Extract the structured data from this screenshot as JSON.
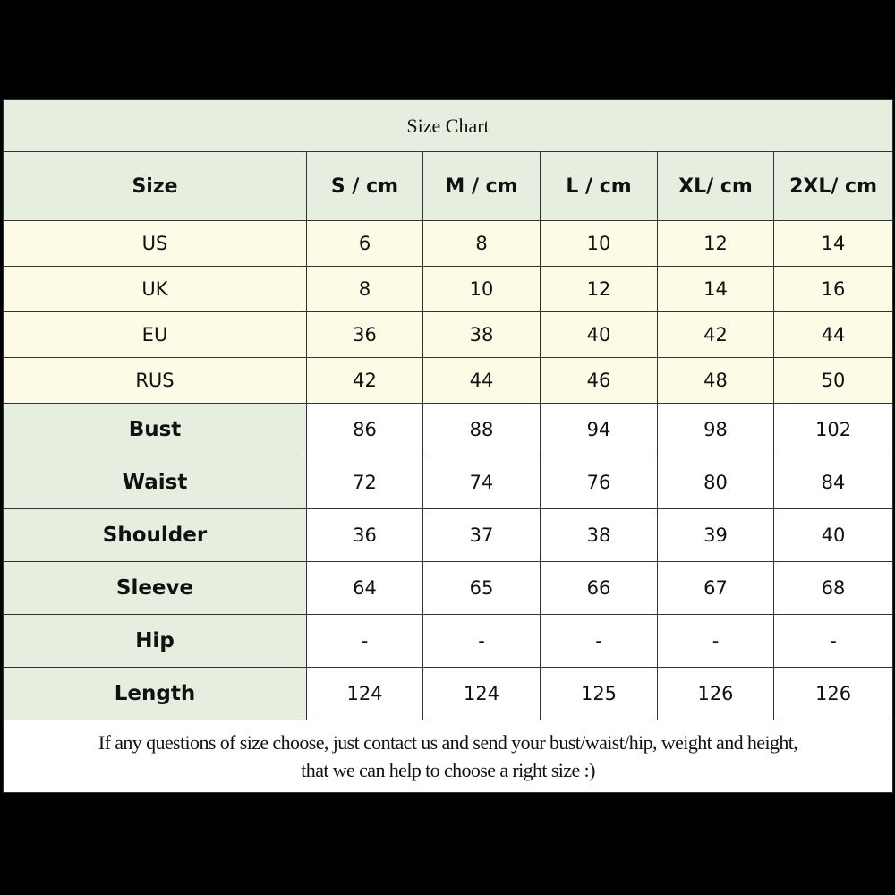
{
  "title": "Size Chart",
  "columns": [
    "Size",
    "S / cm",
    "M / cm",
    "L / cm",
    "XL/ cm",
    "2XL/ cm"
  ],
  "conversion_rows": [
    {
      "label": "US",
      "values": [
        "6",
        "8",
        "10",
        "12",
        "14"
      ]
    },
    {
      "label": "UK",
      "values": [
        "8",
        "10",
        "12",
        "14",
        "16"
      ]
    },
    {
      "label": "EU",
      "values": [
        "36",
        "38",
        "40",
        "42",
        "44"
      ]
    },
    {
      "label": "RUS",
      "values": [
        "42",
        "44",
        "46",
        "48",
        "50"
      ]
    }
  ],
  "measurement_rows": [
    {
      "label": "Bust",
      "values": [
        "86",
        "88",
        "94",
        "98",
        "102"
      ]
    },
    {
      "label": "Waist",
      "values": [
        "72",
        "74",
        "76",
        "80",
        "84"
      ]
    },
    {
      "label": "Shoulder",
      "values": [
        "36",
        "37",
        "38",
        "39",
        "40"
      ]
    },
    {
      "label": "Sleeve",
      "values": [
        "64",
        "65",
        "66",
        "67",
        "68"
      ]
    },
    {
      "label": "Hip",
      "values": [
        "-",
        "-",
        "-",
        "-",
        "-"
      ]
    },
    {
      "label": "Length",
      "values": [
        "124",
        "124",
        "125",
        "126",
        "126"
      ]
    }
  ],
  "footer": {
    "line1": "If any questions of size choose, just contact us and send your bust/waist/hip, weight and height,",
    "line2": "that we can help to choose a right size :)"
  }
}
